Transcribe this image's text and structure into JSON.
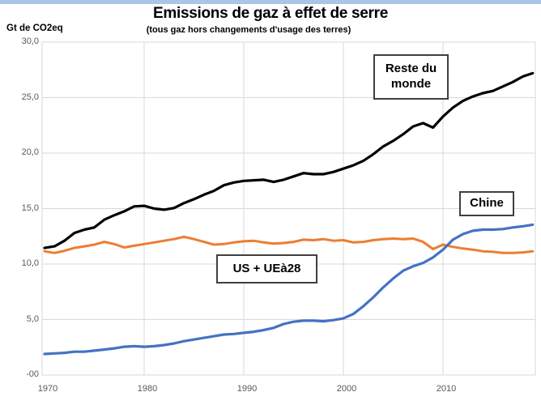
{
  "page": {
    "top_strip_color": "#A9C6E8",
    "background_color": "#FFFFFF"
  },
  "header": {
    "title": "Emissions de gaz à effet de serre",
    "subtitle": "(tous gaz hors changements d'usage des terres)",
    "y_axis_unit": "Gt de CO2eq"
  },
  "chart_data": {
    "type": "line",
    "title": "Emissions de gaz à effet de serre",
    "subtitle": "(tous gaz hors changements d'usage des terres)",
    "ylabel": "Gt de CO2eq",
    "xlabel": "",
    "ylim": [
      0,
      30
    ],
    "xlim": [
      1970,
      2019
    ],
    "grid": true,
    "grid_color": "#D9D9D9",
    "axis_text_color": "#595959",
    "grid_years": [
      1980,
      1990,
      2000,
      2010
    ],
    "x_ticks": [
      {
        "year": 1970,
        "label": "1970"
      },
      {
        "year": 1980,
        "label": "1980"
      },
      {
        "year": 1990,
        "label": "1990"
      },
      {
        "year": 2000,
        "label": "2000"
      },
      {
        "year": 2010,
        "label": "2010"
      }
    ],
    "y_ticks": [
      {
        "value": 30,
        "label": "30,0"
      },
      {
        "value": 25,
        "label": "25,0"
      },
      {
        "value": 20,
        "label": "20,0"
      },
      {
        "value": 15,
        "label": "15,0"
      },
      {
        "value": 10,
        "label": "10,0"
      },
      {
        "value": 5,
        "label": "5,0"
      },
      {
        "value": 0,
        "label": "-00"
      }
    ],
    "x": [
      1970,
      1971,
      1972,
      1973,
      1974,
      1975,
      1976,
      1977,
      1978,
      1979,
      1980,
      1981,
      1982,
      1983,
      1984,
      1985,
      1986,
      1987,
      1988,
      1989,
      1990,
      1991,
      1992,
      1993,
      1994,
      1995,
      1996,
      1997,
      1998,
      1999,
      2000,
      2001,
      2002,
      2003,
      2004,
      2005,
      2006,
      2007,
      2008,
      2009,
      2010,
      2011,
      2012,
      2013,
      2014,
      2015,
      2016,
      2017,
      2018,
      2019
    ],
    "series": [
      {
        "name": "US + UEà28",
        "color": "#ED7D31",
        "stroke_width": 3,
        "values": [
          11.15,
          11.0,
          11.2,
          11.45,
          11.6,
          11.75,
          12.0,
          11.8,
          11.5,
          11.65,
          11.8,
          11.95,
          12.1,
          12.25,
          12.45,
          12.25,
          12.0,
          11.75,
          11.8,
          11.95,
          12.05,
          12.1,
          11.95,
          11.85,
          11.9,
          12.0,
          12.2,
          12.15,
          12.25,
          12.1,
          12.15,
          11.95,
          12.0,
          12.15,
          12.25,
          12.3,
          12.25,
          12.3,
          12.0,
          11.35,
          11.75,
          11.55,
          11.4,
          11.3,
          11.15,
          11.1,
          11.0,
          11.0,
          11.05,
          11.15
        ]
      },
      {
        "name": "Chine",
        "color": "#4472C4",
        "stroke_width": 3.2,
        "values": [
          1.9,
          1.95,
          2.0,
          2.1,
          2.1,
          2.2,
          2.3,
          2.4,
          2.55,
          2.6,
          2.55,
          2.6,
          2.7,
          2.85,
          3.05,
          3.2,
          3.35,
          3.5,
          3.65,
          3.7,
          3.8,
          3.9,
          4.05,
          4.25,
          4.6,
          4.8,
          4.9,
          4.9,
          4.85,
          4.95,
          5.1,
          5.5,
          6.2,
          7.0,
          7.9,
          8.7,
          9.4,
          9.8,
          10.1,
          10.6,
          11.3,
          12.2,
          12.7,
          13.0,
          13.1,
          13.1,
          13.15,
          13.3,
          13.4,
          13.55
        ]
      },
      {
        "name": "Reste du monde",
        "color": "#000000",
        "stroke_width": 3.2,
        "values": [
          11.45,
          11.6,
          12.1,
          12.8,
          13.1,
          13.3,
          14.0,
          14.4,
          14.75,
          15.2,
          15.25,
          15.0,
          14.9,
          15.05,
          15.5,
          15.85,
          16.25,
          16.6,
          17.1,
          17.35,
          17.5,
          17.55,
          17.6,
          17.4,
          17.6,
          17.9,
          18.2,
          18.1,
          18.1,
          18.3,
          18.6,
          18.9,
          19.3,
          19.9,
          20.6,
          21.1,
          21.7,
          22.4,
          22.7,
          22.3,
          23.3,
          24.1,
          24.7,
          25.1,
          25.4,
          25.6,
          26.0,
          26.4,
          26.9,
          27.2
        ]
      }
    ],
    "annotations": {
      "reste": "Reste du monde",
      "chine": "Chine",
      "us_ue": "US + UEà28"
    },
    "legend_position": "inline-boxes"
  }
}
